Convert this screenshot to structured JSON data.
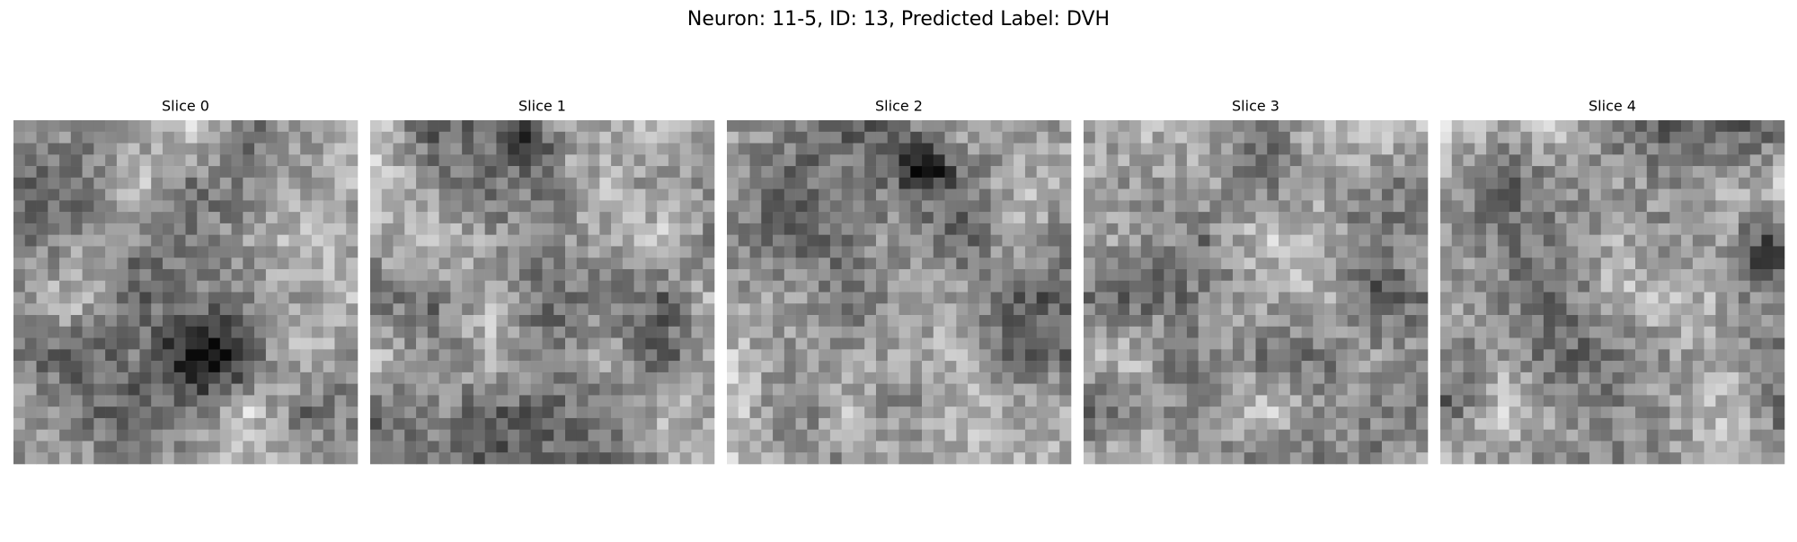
{
  "title": "Neuron: 11-5, ID: 13, Predicted Label: DVH",
  "panels": [
    {
      "title": "Slice 0"
    },
    {
      "title": "Slice 1"
    },
    {
      "title": "Slice 2"
    },
    {
      "title": "Slice 3"
    },
    {
      "title": "Slice 4"
    }
  ]
}
